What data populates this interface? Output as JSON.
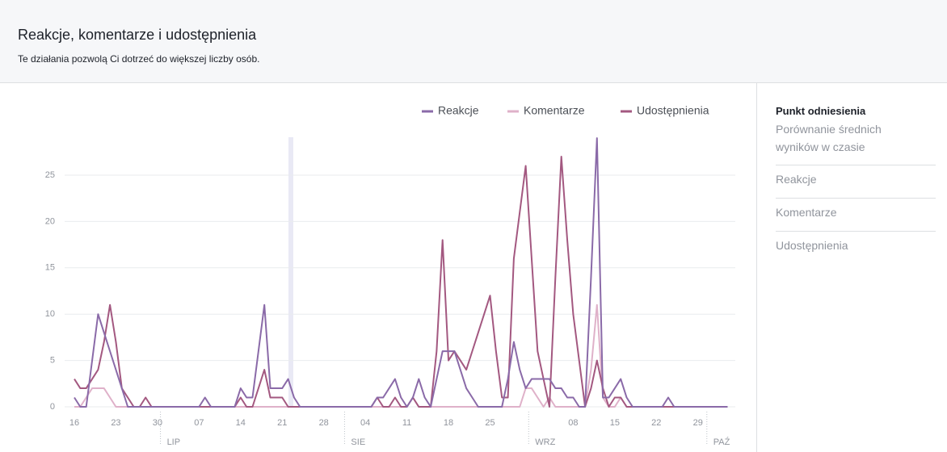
{
  "header": {
    "title": "Reakcje, komentarze i udostępnienia",
    "subtitle": "Te działania pozwolą Ci dotrzeć do większej liczby osób."
  },
  "sidebar": {
    "title": "Punkt odniesienia",
    "subtitle": "Porównanie średnich wyników w czasie",
    "items": [
      "Reakcje",
      "Komentarze",
      "Udostępnienia"
    ]
  },
  "chart_data": {
    "type": "line",
    "categories": [
      "16",
      null,
      null,
      null,
      null,
      null,
      null,
      "23",
      null,
      null,
      null,
      null,
      null,
      null,
      "30",
      null,
      null,
      null,
      null,
      null,
      null,
      "07",
      null,
      null,
      null,
      null,
      null,
      null,
      "14",
      null,
      null,
      null,
      null,
      null,
      null,
      "21",
      null,
      null,
      null,
      null,
      null,
      null,
      "28",
      null,
      null,
      null,
      null,
      null,
      null,
      "04",
      null,
      null,
      null,
      null,
      null,
      null,
      "11",
      null,
      null,
      null,
      null,
      null,
      null,
      "18",
      null,
      null,
      null,
      null,
      null,
      null,
      "25",
      null,
      null,
      null,
      null,
      null,
      null,
      null,
      null,
      null,
      null,
      null,
      null,
      null,
      "08",
      null,
      null,
      null,
      null,
      null,
      null,
      "15",
      null,
      null,
      null,
      null,
      null,
      null,
      "22",
      null,
      null,
      null,
      null,
      null,
      null,
      "29",
      null,
      null,
      null,
      null,
      null
    ],
    "month_labels": [
      "LIP",
      "SIE",
      "WRZ",
      "PAŹ"
    ],
    "series": [
      {
        "name": "Reakcje",
        "color": "#8a6aa8",
        "values": [
          1,
          0,
          0,
          5,
          10,
          8,
          6,
          4,
          2,
          0,
          0,
          0,
          0,
          0,
          0,
          0,
          0,
          0,
          0,
          0,
          0,
          0,
          1,
          0,
          0,
          0,
          0,
          0,
          2,
          1,
          1,
          6,
          11,
          2,
          2,
          2,
          3,
          1,
          0,
          0,
          0,
          0,
          0,
          0,
          0,
          0,
          0,
          0,
          0,
          0,
          0,
          1,
          1,
          2,
          3,
          1,
          0,
          1,
          3,
          1,
          0,
          3,
          6,
          6,
          6,
          4,
          2,
          1,
          0,
          0,
          0,
          0,
          0,
          3,
          7,
          4,
          2,
          3,
          3,
          3,
          3,
          2,
          2,
          1,
          1,
          0,
          0,
          14,
          29,
          1,
          1,
          2,
          3,
          1,
          0,
          0,
          0,
          0,
          0,
          0,
          1,
          0,
          0,
          0,
          0,
          0,
          0,
          0,
          0,
          0,
          0
        ]
      },
      {
        "name": "Komentarze",
        "color": "#dfb1c9",
        "values": [
          0,
          0,
          1,
          2,
          2,
          2,
          1,
          0,
          0,
          0,
          0,
          0,
          0,
          0,
          0,
          0,
          0,
          0,
          0,
          0,
          0,
          0,
          0,
          0,
          0,
          0,
          0,
          0,
          0,
          0,
          0,
          0,
          0,
          0,
          0,
          0,
          0,
          0,
          0,
          0,
          0,
          0,
          0,
          0,
          0,
          0,
          0,
          0,
          0,
          0,
          0,
          0,
          0,
          0,
          0,
          0,
          0,
          1,
          0,
          0,
          0,
          0,
          0,
          0,
          0,
          0,
          0,
          0,
          0,
          0,
          0,
          0,
          0,
          0,
          0,
          0,
          2,
          2,
          1,
          0,
          1,
          0,
          0,
          0,
          0,
          0,
          0,
          4,
          11,
          1,
          0,
          0,
          1,
          0,
          0,
          0,
          0,
          0,
          0,
          0,
          0,
          0,
          0,
          0,
          0,
          0,
          0,
          0,
          0,
          0,
          0
        ]
      },
      {
        "name": "Udostępnienia",
        "color": "#a35880",
        "values": [
          3,
          2,
          2,
          3,
          4,
          7,
          11,
          7,
          2,
          1,
          0,
          0,
          1,
          0,
          0,
          0,
          0,
          0,
          0,
          0,
          0,
          0,
          0,
          0,
          0,
          0,
          0,
          0,
          1,
          0,
          0,
          2,
          4,
          1,
          1,
          1,
          0,
          0,
          0,
          0,
          0,
          0,
          0,
          0,
          0,
          0,
          0,
          0,
          0,
          0,
          0,
          1,
          0,
          0,
          1,
          0,
          0,
          1,
          0,
          0,
          0,
          6,
          18,
          5,
          6,
          5,
          4,
          6,
          8,
          10,
          12,
          6,
          1,
          1,
          16,
          21,
          26,
          16,
          6,
          3,
          0,
          14,
          27,
          18,
          10,
          5,
          0,
          2,
          5,
          2,
          0,
          1,
          1,
          0,
          0,
          0,
          0,
          0,
          0,
          0,
          0,
          0,
          0,
          0,
          0,
          0,
          0,
          0,
          0,
          0,
          0
        ]
      }
    ],
    "ylim": [
      0,
      29
    ],
    "yticks": [
      0,
      5,
      10,
      15,
      20,
      25
    ],
    "grid": true,
    "legend": "top-right"
  }
}
